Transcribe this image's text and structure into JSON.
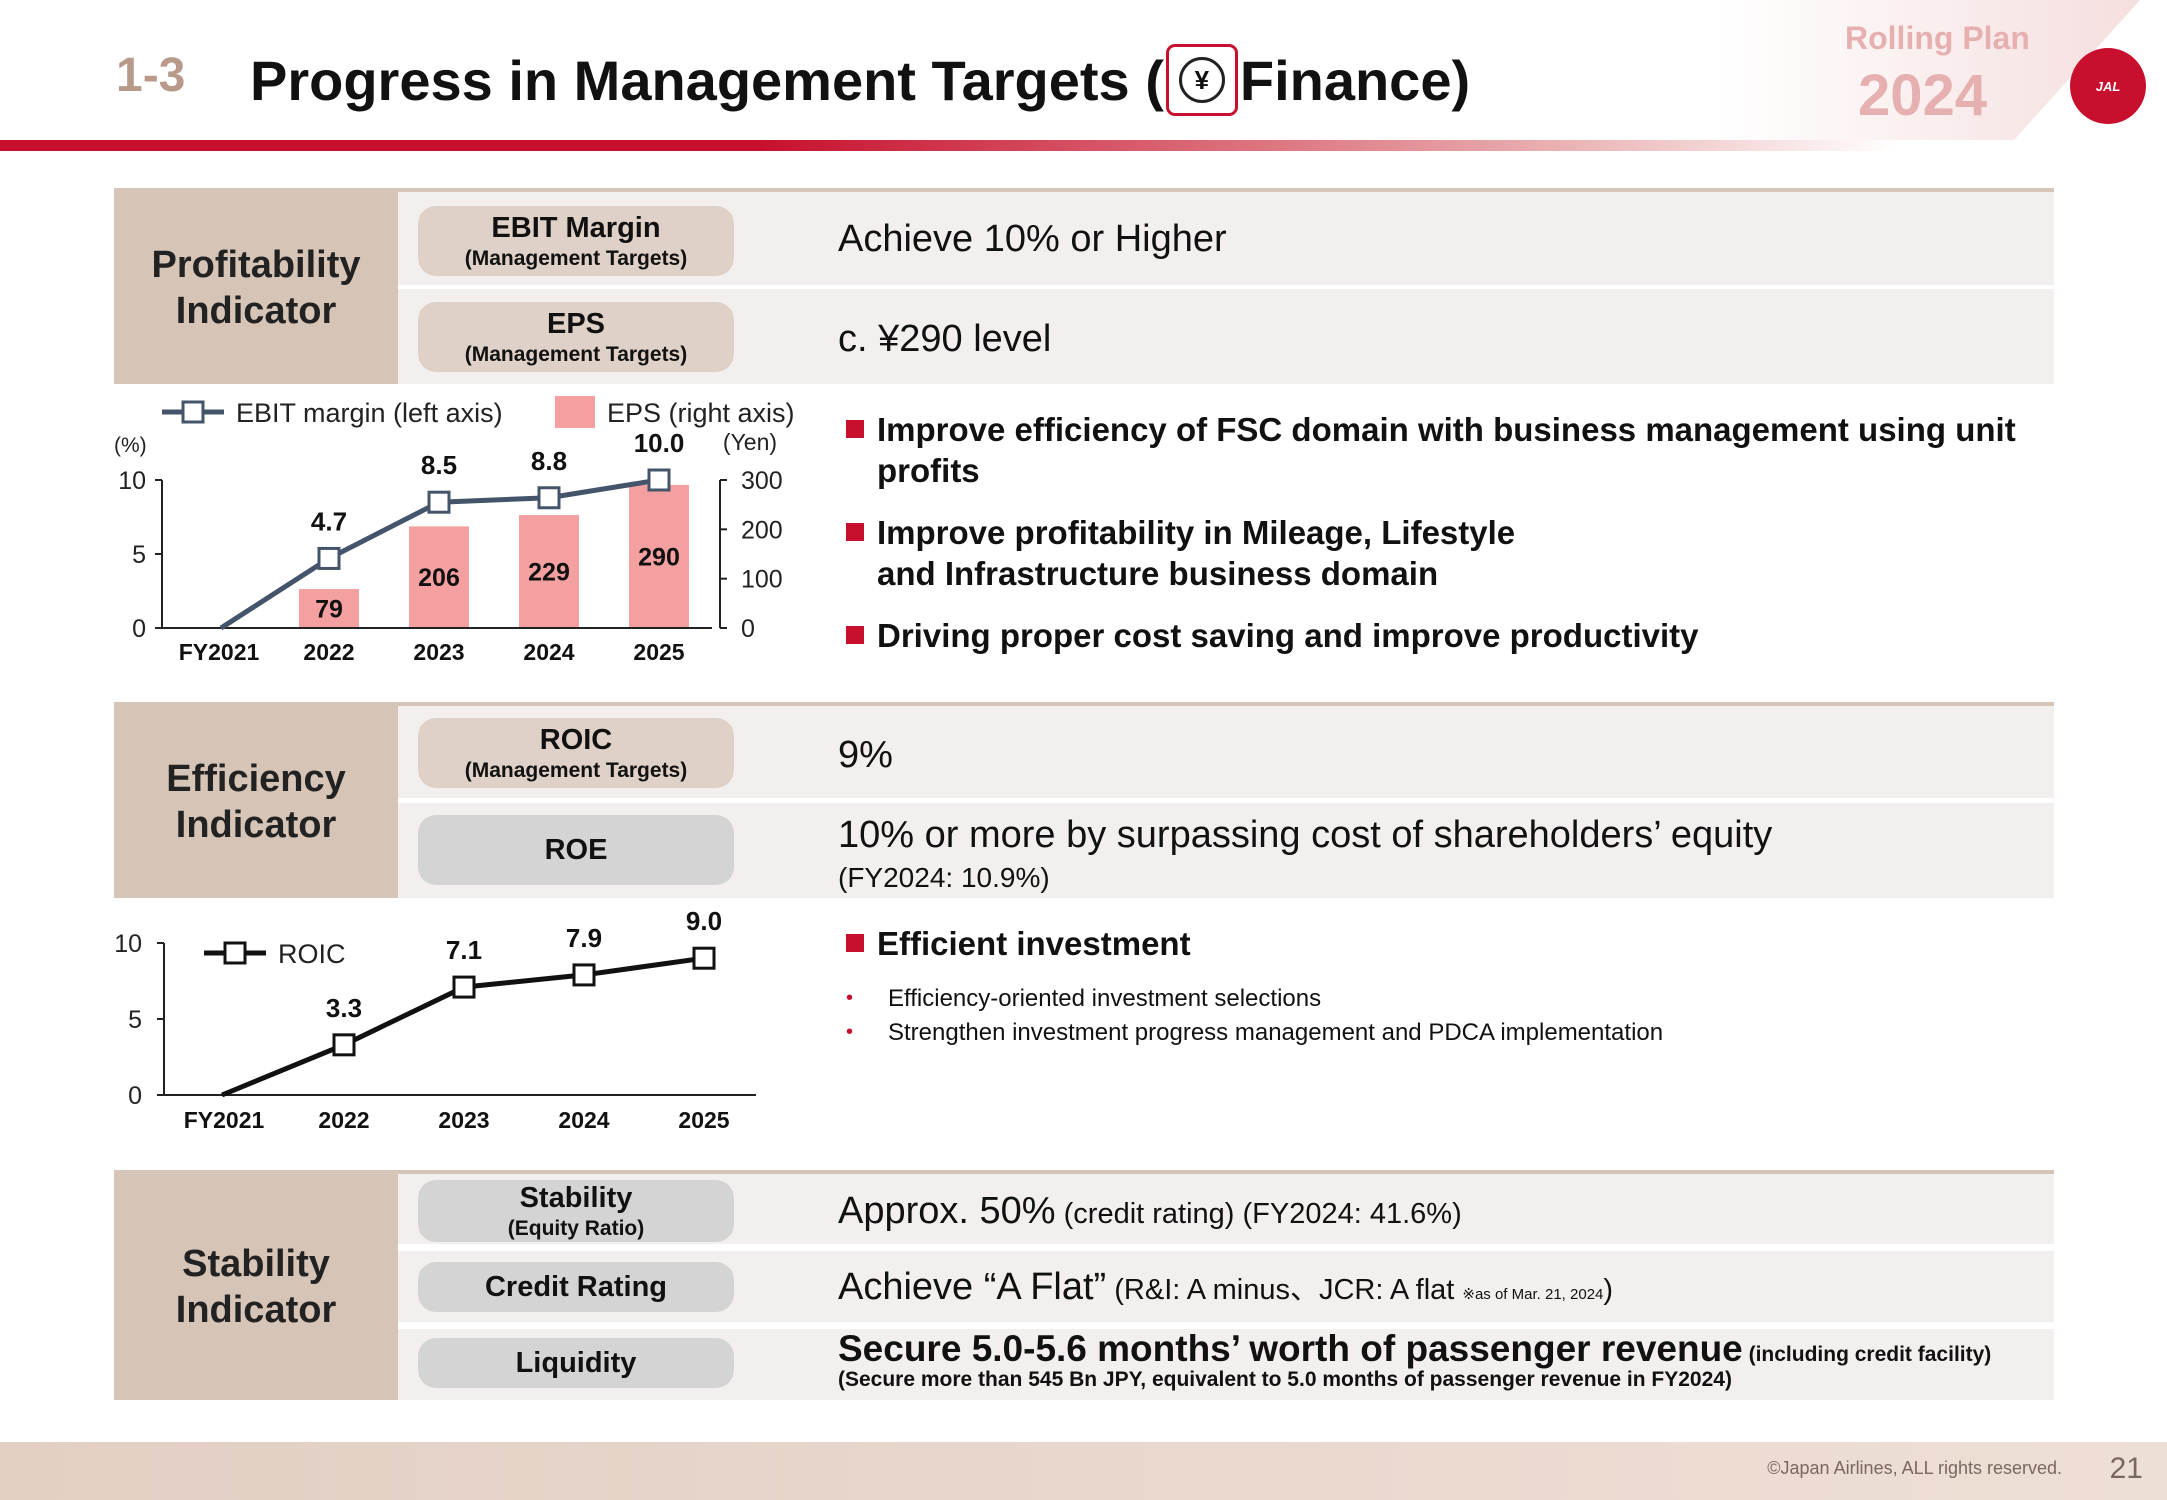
{
  "header": {
    "section_number": "1-3",
    "title_before": "Progress in Management Targets (",
    "title_icon_symbol": "¥",
    "title_after": " Finance)",
    "rolling_plan_label": "Rolling Plan",
    "rolling_plan_year": "2024",
    "logo_text": "JAL",
    "brand_color": "#c8102e"
  },
  "profitability": {
    "label": "Profitability Indicator",
    "rows": [
      {
        "metric": "EBIT Margin",
        "sub": "(Management Targets)",
        "target": "Achieve 10% or Higher"
      },
      {
        "metric": "EPS",
        "sub": "(Management Targets)",
        "target": "c. ¥290 level"
      }
    ],
    "bullets": [
      "Improve efficiency of FSC domain with business management using unit profits",
      "Improve profitability in Mileage, Lifestyle and Infrastructure business domain",
      "Driving proper cost saving and improve productivity"
    ]
  },
  "efficiency": {
    "label": "Efficiency Indicator",
    "rows": [
      {
        "metric": "ROIC",
        "sub": "(Management Targets)",
        "target": "9%"
      },
      {
        "metric": "ROE",
        "target": "10% or more by surpassing cost of shareholders’ equity",
        "note": "(FY2024: 10.9%)"
      }
    ],
    "bullet_title": "Efficient investment",
    "sub_bullets": [
      "Efficiency-oriented investment selections",
      "Strengthen investment progress management and PDCA implementation"
    ]
  },
  "stability": {
    "label": "Stability Indicator",
    "rows": [
      {
        "metric": "Stability",
        "sub": "(Equity Ratio)",
        "target_main": "Approx. 50%",
        "target_rest": " (credit rating) (FY2024: 41.6%)"
      },
      {
        "metric": "Credit Rating",
        "target_main": "Achieve “A Flat”",
        "target_rest": " (R&I: A minus、JCR: A flat ",
        "footnote": "※as of Mar. 21, 2024",
        "close": ")"
      },
      {
        "metric": "Liquidity",
        "target_main": "Secure 5.0-5.6 months’ worth of passenger revenue",
        "target_rest": " (including credit facility) (Secure more than 545 Bn JPY, equivalent to 5.0 months of passenger revenue in FY2024)"
      }
    ]
  },
  "chart_data": [
    {
      "type": "bar+line",
      "categories": [
        "FY2021",
        "2022",
        "2023",
        "2024",
        "2025"
      ],
      "series": [
        {
          "name": "EBIT margin (left axis)",
          "kind": "line",
          "axis": "left",
          "values": [
            0,
            4.7,
            8.5,
            8.8,
            10.0
          ],
          "labels": [
            "",
            "4.7",
            "8.5",
            "8.8",
            "10.0"
          ],
          "color": "#44546a"
        },
        {
          "name": "EPS (right axis)",
          "kind": "bar",
          "axis": "right",
          "values": [
            null,
            79,
            206,
            229,
            290
          ],
          "labels": [
            "",
            "79",
            "206",
            "229",
            "290"
          ],
          "color": "#f4a0a0"
        }
      ],
      "left_unit": "(%)",
      "right_unit": "(Yen)",
      "ylim_left": [
        0,
        10
      ],
      "left_ticks": [
        "0",
        "5",
        "10"
      ],
      "ylim_right": [
        0,
        300
      ],
      "right_ticks": [
        "0",
        "100",
        "200",
        "300"
      ],
      "legend_position": "top"
    },
    {
      "type": "line",
      "categories": [
        "FY2021",
        "2022",
        "2023",
        "2024",
        "2025"
      ],
      "series": [
        {
          "name": "ROIC",
          "values": [
            0,
            3.3,
            7.1,
            7.9,
            9.0
          ],
          "labels": [
            "",
            "3.3",
            "7.1",
            "7.9",
            "9.0"
          ],
          "color": "#111111"
        }
      ],
      "ylim": [
        0,
        10
      ],
      "ticks": [
        "0",
        "5",
        "10"
      ],
      "legend_position": "top-left"
    }
  ],
  "footer": {
    "copyright": "©Japan Airlines, ALL rights reserved.",
    "page_number": "21"
  }
}
